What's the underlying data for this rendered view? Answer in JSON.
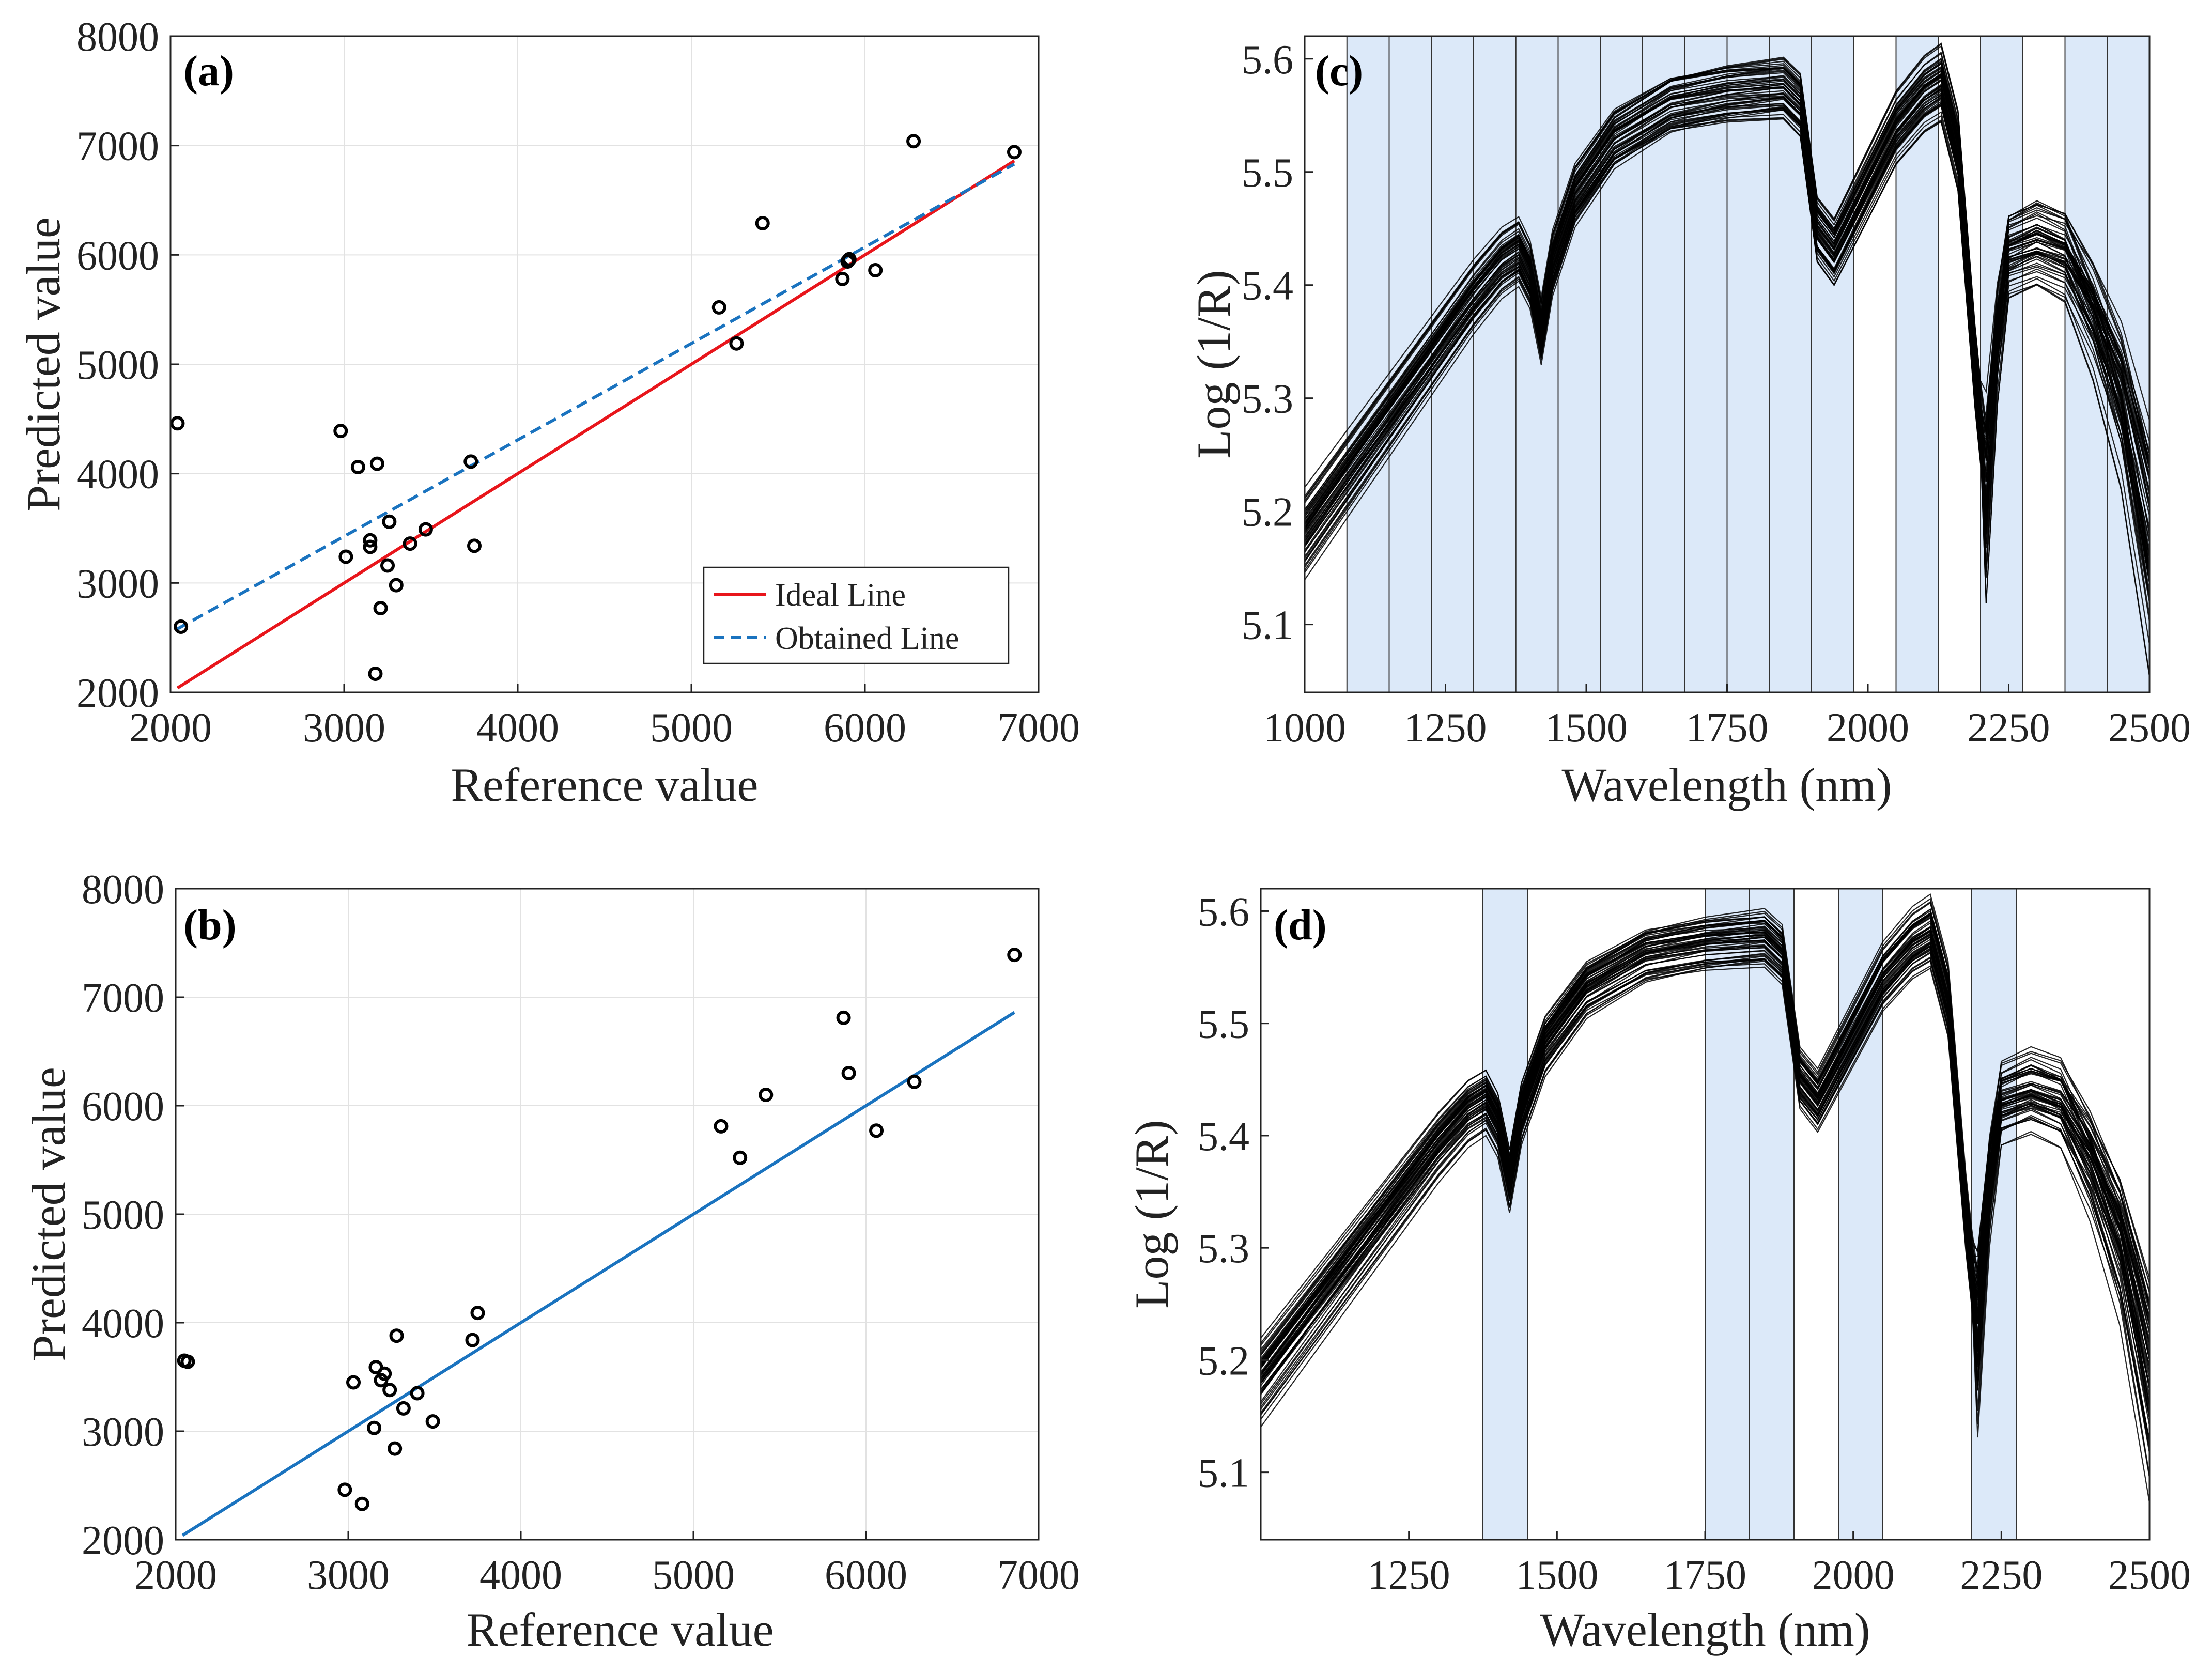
{
  "colors": {
    "ideal_line": "#e8151b",
    "obtained_line": "#1a73bf",
    "fit_line": "#1a73bf",
    "band_fill": "#dce9f9",
    "spectra": "#000000",
    "axis": "#222222",
    "grid": "#e2e2e2"
  },
  "chart_data": [
    {
      "id": "a",
      "panel_label": "(a)",
      "type": "scatter",
      "xlabel": "Reference value",
      "ylabel": "Predicted value",
      "xlim": [
        2000,
        7000
      ],
      "ylim": [
        2000,
        8000
      ],
      "xticks": [
        2000,
        3000,
        4000,
        5000,
        6000,
        7000
      ],
      "yticks": [
        2000,
        3000,
        4000,
        5000,
        6000,
        7000,
        8000
      ],
      "grid": true,
      "points": [
        [
          2040,
          4460
        ],
        [
          2060,
          2600
        ],
        [
          2980,
          4390
        ],
        [
          3010,
          3240
        ],
        [
          3080,
          4060
        ],
        [
          3150,
          3390
        ],
        [
          3150,
          3330
        ],
        [
          3180,
          2170
        ],
        [
          3190,
          4090
        ],
        [
          3210,
          2770
        ],
        [
          3250,
          3160
        ],
        [
          3260,
          3560
        ],
        [
          3300,
          2980
        ],
        [
          3380,
          3360
        ],
        [
          3470,
          3490
        ],
        [
          3730,
          4110
        ],
        [
          3750,
          3340
        ],
        [
          5160,
          5520
        ],
        [
          5260,
          5190
        ],
        [
          5410,
          6290
        ],
        [
          5870,
          5780
        ],
        [
          5900,
          5940
        ],
        [
          5910,
          5960
        ],
        [
          6060,
          5860
        ],
        [
          6280,
          7040
        ],
        [
          6860,
          6940
        ]
      ],
      "lines": [
        {
          "name": "Ideal Line",
          "style": "solid",
          "x": [
            2040,
            6860
          ],
          "y": [
            2040,
            6860
          ]
        },
        {
          "name": "Obtained Line",
          "style": "dashed",
          "x": [
            2040,
            6860
          ],
          "y": [
            2580,
            6830
          ]
        }
      ],
      "legend": {
        "position": "bottom-right",
        "entries": [
          "Ideal Line",
          "Obtained Line"
        ]
      }
    },
    {
      "id": "b",
      "panel_label": "(b)",
      "type": "scatter",
      "xlabel": "Reference value",
      "ylabel": "Predicted value",
      "xlim": [
        2000,
        7000
      ],
      "ylim": [
        2000,
        8000
      ],
      "xticks": [
        2000,
        3000,
        4000,
        5000,
        6000,
        7000
      ],
      "yticks": [
        2000,
        3000,
        4000,
        5000,
        6000,
        7000,
        8000
      ],
      "grid": true,
      "points": [
        [
          2050,
          3650
        ],
        [
          2070,
          3640
        ],
        [
          2980,
          2460
        ],
        [
          3030,
          3450
        ],
        [
          3080,
          2330
        ],
        [
          3150,
          3030
        ],
        [
          3160,
          3590
        ],
        [
          3190,
          3470
        ],
        [
          3210,
          3530
        ],
        [
          3240,
          3380
        ],
        [
          3270,
          2840
        ],
        [
          3280,
          3880
        ],
        [
          3320,
          3210
        ],
        [
          3400,
          3350
        ],
        [
          3490,
          3090
        ],
        [
          3720,
          3840
        ],
        [
          3750,
          4090
        ],
        [
          5160,
          5810
        ],
        [
          5270,
          5520
        ],
        [
          5420,
          6100
        ],
        [
          5870,
          6810
        ],
        [
          5900,
          6300
        ],
        [
          6060,
          5770
        ],
        [
          6280,
          6220
        ],
        [
          6860,
          7390
        ]
      ],
      "lines": [
        {
          "name": "Fit Line",
          "style": "solid",
          "x": [
            2040,
            6860
          ],
          "y": [
            2040,
            6860
          ]
        }
      ]
    },
    {
      "id": "c",
      "panel_label": "(c)",
      "type": "line",
      "xlabel": "Wavelength (nm)",
      "ylabel": "Log (1/R)",
      "xlim": [
        1000,
        2500
      ],
      "ylim": [
        5.04,
        5.62
      ],
      "xticks": [
        1000,
        1250,
        1500,
        1750,
        2000,
        2250,
        2500
      ],
      "yticks": [
        5.1,
        5.2,
        5.3,
        5.4,
        5.5,
        5.6
      ],
      "grid": false,
      "num_spectra": 60,
      "mean_spectrum": {
        "x": [
          1000,
          1100,
          1200,
          1300,
          1350,
          1380,
          1400,
          1420,
          1440,
          1480,
          1550,
          1650,
          1750,
          1850,
          1880,
          1910,
          1940,
          1980,
          2050,
          2100,
          2130,
          2160,
          2190,
          2210,
          2230,
          2250,
          2300,
          2350,
          2400,
          2450,
          2500
        ],
        "y": [
          5.18,
          5.25,
          5.32,
          5.39,
          5.42,
          5.43,
          5.41,
          5.36,
          5.42,
          5.48,
          5.53,
          5.56,
          5.57,
          5.575,
          5.56,
          5.45,
          5.43,
          5.47,
          5.54,
          5.57,
          5.58,
          5.52,
          5.33,
          5.23,
          5.36,
          5.43,
          5.44,
          5.43,
          5.38,
          5.31,
          5.19
        ]
      },
      "selected_bands_nm": [
        [
          1075,
          1150
        ],
        [
          1150,
          1225
        ],
        [
          1225,
          1300
        ],
        [
          1300,
          1375
        ],
        [
          1375,
          1450
        ],
        [
          1450,
          1525
        ],
        [
          1525,
          1600
        ],
        [
          1600,
          1675
        ],
        [
          1675,
          1750
        ],
        [
          1750,
          1825
        ],
        [
          1825,
          1900
        ],
        [
          1900,
          1975
        ],
        [
          2050,
          2125
        ],
        [
          2200,
          2275
        ],
        [
          2350,
          2425
        ],
        [
          2425,
          2500
        ]
      ]
    },
    {
      "id": "d",
      "panel_label": "(d)",
      "type": "line",
      "xlabel": "Wavelength (nm)",
      "ylabel": "Log (1/R)",
      "xlim": [
        1000,
        2500
      ],
      "ylim": [
        5.04,
        5.62
      ],
      "xticks": [
        1250,
        1500,
        1750,
        2000,
        2250,
        2500
      ],
      "yticks": [
        5.1,
        5.2,
        5.3,
        5.4,
        5.5,
        5.6
      ],
      "grid": false,
      "num_spectra": 60,
      "mean_spectrum": {
        "x": [
          1000,
          1100,
          1200,
          1300,
          1350,
          1380,
          1400,
          1420,
          1440,
          1480,
          1550,
          1650,
          1750,
          1850,
          1880,
          1910,
          1940,
          1980,
          2050,
          2100,
          2130,
          2160,
          2190,
          2210,
          2230,
          2250,
          2300,
          2350,
          2400,
          2450,
          2500
        ],
        "y": [
          5.18,
          5.25,
          5.32,
          5.39,
          5.42,
          5.43,
          5.41,
          5.36,
          5.42,
          5.48,
          5.53,
          5.56,
          5.57,
          5.575,
          5.56,
          5.45,
          5.43,
          5.47,
          5.54,
          5.57,
          5.58,
          5.52,
          5.33,
          5.23,
          5.36,
          5.43,
          5.44,
          5.43,
          5.38,
          5.31,
          5.19
        ]
      },
      "selected_bands_nm": [
        [
          1375,
          1450
        ],
        [
          1750,
          1825
        ],
        [
          1825,
          1900
        ],
        [
          1975,
          2050
        ],
        [
          2200,
          2275
        ]
      ]
    }
  ]
}
